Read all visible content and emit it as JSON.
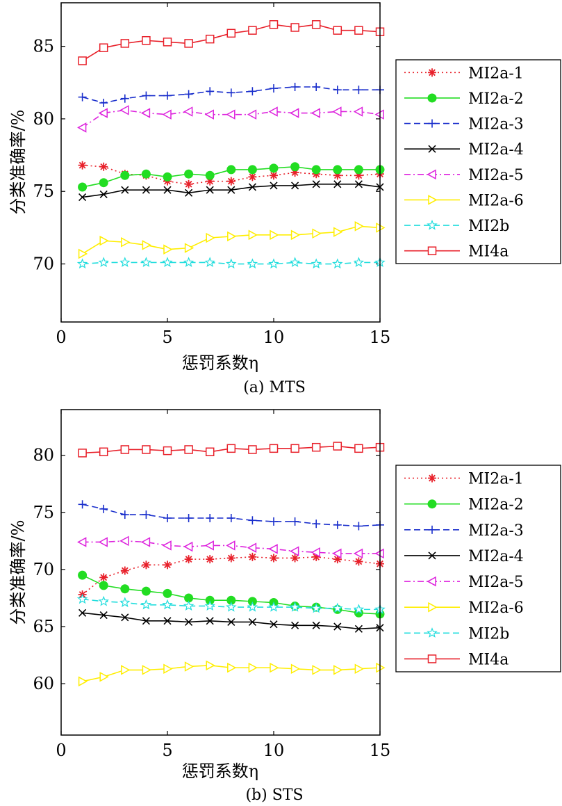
{
  "chart_data": [
    {
      "type": "line",
      "caption": "(a) MTS",
      "xlabel": "惩罚系数η",
      "ylabel": "分类准确率/%",
      "xlim": [
        0,
        15
      ],
      "ylim": [
        66,
        88
      ],
      "xticks": [
        0,
        5,
        10,
        15
      ],
      "yticks": [
        70,
        75,
        80,
        85
      ],
      "grid": false,
      "legend_position": "right",
      "x": [
        1,
        2,
        3,
        4,
        5,
        6,
        7,
        8,
        9,
        10,
        11,
        12,
        13,
        14,
        15
      ],
      "series": [
        {
          "name": "MI2a-1",
          "color": "#e8202a",
          "line": "dotted",
          "marker": "asterisk",
          "values": [
            76.8,
            76.7,
            76.2,
            76.1,
            75.7,
            75.5,
            75.7,
            75.7,
            76.0,
            76.1,
            76.3,
            76.2,
            76.1,
            76.1,
            76.2
          ]
        },
        {
          "name": "MI2a-2",
          "color": "#22dd22",
          "line": "solid",
          "marker": "filled-circle",
          "values": [
            75.3,
            75.6,
            76.1,
            76.2,
            76.0,
            76.2,
            76.1,
            76.5,
            76.5,
            76.6,
            76.7,
            76.5,
            76.5,
            76.5,
            76.5
          ]
        },
        {
          "name": "MI2a-3",
          "color": "#1a2fcc",
          "line": "dashed",
          "marker": "plus",
          "values": [
            81.5,
            81.1,
            81.4,
            81.6,
            81.6,
            81.7,
            81.9,
            81.8,
            81.9,
            82.1,
            82.2,
            82.2,
            82.0,
            82.0,
            82.0
          ]
        },
        {
          "name": "MI2a-4",
          "color": "#000000",
          "line": "solid",
          "marker": "x",
          "values": [
            74.6,
            74.8,
            75.1,
            75.1,
            75.1,
            74.9,
            75.1,
            75.1,
            75.3,
            75.4,
            75.4,
            75.5,
            75.5,
            75.5,
            75.3
          ]
        },
        {
          "name": "MI2a-5",
          "color": "#dd22dd",
          "line": "dashdot",
          "marker": "triangle-left",
          "values": [
            79.4,
            80.4,
            80.6,
            80.4,
            80.3,
            80.5,
            80.3,
            80.3,
            80.3,
            80.5,
            80.4,
            80.4,
            80.5,
            80.5,
            80.3
          ]
        },
        {
          "name": "MI2a-6",
          "color": "#ffee00",
          "line": "solid",
          "marker": "triangle-right",
          "values": [
            70.7,
            71.6,
            71.5,
            71.3,
            71.0,
            71.1,
            71.8,
            71.9,
            72.0,
            72.0,
            72.0,
            72.1,
            72.2,
            72.6,
            72.5
          ]
        },
        {
          "name": "MI2b",
          "color": "#22dddd",
          "line": "dashed",
          "marker": "star",
          "values": [
            70.0,
            70.1,
            70.1,
            70.1,
            70.1,
            70.1,
            70.1,
            70.0,
            70.0,
            70.0,
            70.1,
            70.0,
            70.0,
            70.1,
            70.1
          ]
        },
        {
          "name": "MI4a",
          "color": "#e8202a",
          "line": "solid",
          "marker": "square",
          "values": [
            84.0,
            84.9,
            85.2,
            85.4,
            85.3,
            85.2,
            85.5,
            85.9,
            86.1,
            86.5,
            86.3,
            86.5,
            86.1,
            86.1,
            86.0
          ]
        }
      ]
    },
    {
      "type": "line",
      "caption": "(b) STS",
      "xlabel": "惩罚系数η",
      "ylabel": "分类准确率/%",
      "xlim": [
        0,
        15
      ],
      "ylim": [
        55.5,
        84
      ],
      "xticks": [
        0,
        5,
        10,
        15
      ],
      "yticks": [
        60,
        65,
        70,
        75,
        80
      ],
      "grid": false,
      "legend_position": "right",
      "x": [
        1,
        2,
        3,
        4,
        5,
        6,
        7,
        8,
        9,
        10,
        11,
        12,
        13,
        14,
        15
      ],
      "series": [
        {
          "name": "MI2a-1",
          "color": "#e8202a",
          "line": "dotted",
          "marker": "asterisk",
          "values": [
            67.8,
            69.3,
            69.9,
            70.4,
            70.4,
            70.9,
            70.9,
            71.0,
            71.1,
            71.0,
            71.0,
            71.1,
            70.9,
            70.7,
            70.5
          ]
        },
        {
          "name": "MI2a-2",
          "color": "#22dd22",
          "line": "solid",
          "marker": "filled-circle",
          "values": [
            69.5,
            68.6,
            68.3,
            68.1,
            67.9,
            67.5,
            67.3,
            67.3,
            67.2,
            67.1,
            66.8,
            66.7,
            66.5,
            66.2,
            66.1
          ]
        },
        {
          "name": "MI2a-3",
          "color": "#1a2fcc",
          "line": "dashed",
          "marker": "plus",
          "values": [
            75.7,
            75.3,
            74.8,
            74.8,
            74.5,
            74.5,
            74.5,
            74.5,
            74.3,
            74.2,
            74.2,
            74.0,
            73.9,
            73.8,
            73.9
          ]
        },
        {
          "name": "MI2a-4",
          "color": "#000000",
          "line": "solid",
          "marker": "x",
          "values": [
            66.2,
            66.0,
            65.8,
            65.5,
            65.5,
            65.4,
            65.5,
            65.4,
            65.4,
            65.2,
            65.1,
            65.1,
            65.0,
            64.8,
            64.9
          ]
        },
        {
          "name": "MI2a-5",
          "color": "#dd22dd",
          "line": "dashdot",
          "marker": "triangle-left",
          "values": [
            72.4,
            72.4,
            72.5,
            72.4,
            72.1,
            72.0,
            72.1,
            72.1,
            71.9,
            71.8,
            71.6,
            71.5,
            71.4,
            71.4,
            71.4
          ]
        },
        {
          "name": "MI2a-6",
          "color": "#ffee00",
          "line": "solid",
          "marker": "triangle-right",
          "values": [
            60.2,
            60.6,
            61.2,
            61.2,
            61.3,
            61.5,
            61.6,
            61.4,
            61.4,
            61.4,
            61.3,
            61.2,
            61.2,
            61.3,
            61.4
          ]
        },
        {
          "name": "MI2b",
          "color": "#22dddd",
          "line": "dashed",
          "marker": "star",
          "values": [
            67.4,
            67.2,
            67.1,
            66.9,
            66.9,
            66.8,
            66.8,
            66.7,
            66.7,
            66.7,
            66.7,
            66.6,
            66.6,
            66.5,
            66.5
          ]
        },
        {
          "name": "MI4a",
          "color": "#e8202a",
          "line": "solid",
          "marker": "square",
          "values": [
            80.2,
            80.3,
            80.5,
            80.5,
            80.4,
            80.5,
            80.3,
            80.6,
            80.5,
            80.6,
            80.6,
            80.7,
            80.8,
            80.6,
            80.7
          ]
        }
      ]
    }
  ]
}
